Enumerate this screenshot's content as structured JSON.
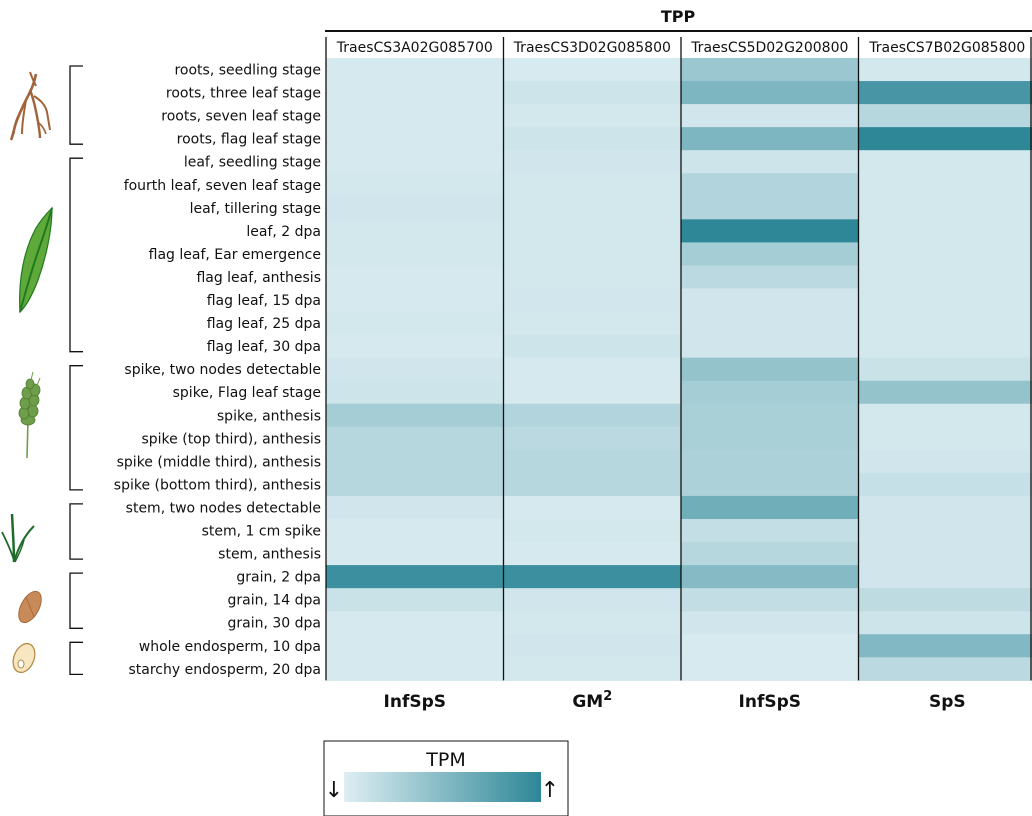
{
  "chart_data": {
    "type": "heatmap",
    "group_header": "TPP",
    "columns": [
      "TraesCS3A02G085700",
      "TraesCS3D02G085800",
      "TraesCS5D02G200800",
      "TraesCS7B02G085800"
    ],
    "column_classes": [
      "InfSpS",
      "GM",
      "InfSpS",
      "SpS"
    ],
    "column_class_superscripts": [
      "",
      "2",
      "",
      ""
    ],
    "rows": [
      "roots, seedling stage",
      "roots, three leaf stage",
      "roots, seven leaf stage",
      "roots, flag leaf stage",
      "leaf, seedling stage",
      "fourth leaf, seven leaf stage",
      "leaf, tillering stage",
      "leaf, 2 dpa",
      "flag leaf, Ear emergence",
      "flag leaf, anthesis",
      "flag leaf, 15 dpa",
      "flag leaf, 25 dpa",
      "flag leaf, 30 dpa",
      "spike, two nodes detectable",
      "spike, Flag leaf stage",
      "spike, anthesis",
      "spike (top third), anthesis",
      "spike (middle third), anthesis",
      "spike (bottom third), anthesis",
      "stem, two nodes detectable",
      "stem, 1 cm spike",
      "stem, anthesis",
      "grain, 2 dpa",
      "grain, 14 dpa",
      "grain, 30 dpa",
      "whole endosperm, 10 dpa",
      "starchy endosperm, 20 dpa"
    ],
    "row_groups": [
      {
        "icon": "roots-icon",
        "rows": [
          0,
          3
        ]
      },
      {
        "icon": "leaf-icon",
        "rows": [
          4,
          12
        ]
      },
      {
        "icon": "spike-icon",
        "rows": [
          13,
          18
        ]
      },
      {
        "icon": "stem-icon",
        "rows": [
          19,
          21
        ]
      },
      {
        "icon": "grain-icon",
        "rows": [
          22,
          24
        ]
      },
      {
        "icon": "endosperm-icon",
        "rows": [
          25,
          26
        ]
      }
    ],
    "values": [
      [
        0.05,
        0.04,
        0.38,
        0.06
      ],
      [
        0.05,
        0.1,
        0.55,
        0.85
      ],
      [
        0.05,
        0.06,
        0.08,
        0.22
      ],
      [
        0.05,
        0.1,
        0.55,
        1.0
      ],
      [
        0.05,
        0.08,
        0.1,
        0.06
      ],
      [
        0.06,
        0.06,
        0.25,
        0.06
      ],
      [
        0.08,
        0.06,
        0.25,
        0.06
      ],
      [
        0.06,
        0.06,
        1.0,
        0.06
      ],
      [
        0.06,
        0.06,
        0.32,
        0.06
      ],
      [
        0.05,
        0.06,
        0.2,
        0.06
      ],
      [
        0.05,
        0.07,
        0.08,
        0.06
      ],
      [
        0.06,
        0.06,
        0.08,
        0.06
      ],
      [
        0.05,
        0.1,
        0.08,
        0.06
      ],
      [
        0.08,
        0.05,
        0.42,
        0.12
      ],
      [
        0.1,
        0.05,
        0.32,
        0.42
      ],
      [
        0.32,
        0.25,
        0.3,
        0.06
      ],
      [
        0.22,
        0.2,
        0.3,
        0.06
      ],
      [
        0.22,
        0.22,
        0.28,
        0.08
      ],
      [
        0.22,
        0.22,
        0.28,
        0.14
      ],
      [
        0.08,
        0.05,
        0.62,
        0.08
      ],
      [
        0.05,
        0.06,
        0.15,
        0.08
      ],
      [
        0.05,
        0.05,
        0.22,
        0.08
      ],
      [
        0.92,
        0.92,
        0.5,
        0.08
      ],
      [
        0.12,
        0.08,
        0.16,
        0.18
      ],
      [
        0.05,
        0.06,
        0.08,
        0.1
      ],
      [
        0.05,
        0.08,
        0.04,
        0.52
      ],
      [
        0.05,
        0.06,
        0.04,
        0.2
      ]
    ],
    "value_scale": "relative TPM, 0 = low, 1 = high",
    "color_low": "#deeef3",
    "color_high": "#2d8797",
    "legend": {
      "title": "TPM",
      "low_symbol": "↓",
      "high_symbol": "↑"
    }
  },
  "colors": {
    "roots": "#a3623a",
    "leaf_light": "#5fa93a",
    "leaf_dark": "#1f7a1f",
    "spike": "#6e9e4a",
    "stem": "#1e6b2a",
    "grain": "#c98a5a",
    "endosperm_shell": "#f7e7c0",
    "endosperm_edge": "#b68a4a"
  }
}
